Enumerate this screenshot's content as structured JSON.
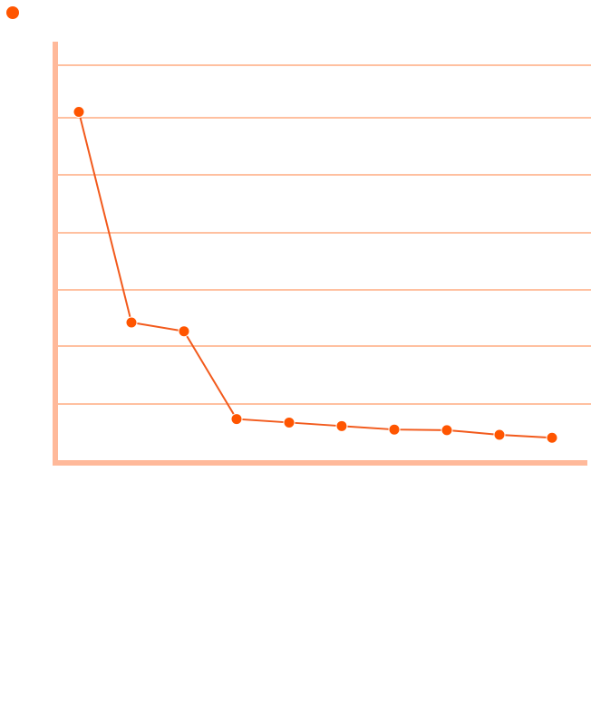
{
  "chart_data": {
    "type": "line",
    "title": "",
    "xlabel": "",
    "ylabel": "",
    "grid": true,
    "legend": "top-left",
    "colors": {
      "series": "#ff5500",
      "line": "#f25a1c",
      "grid": "#ffc0a0",
      "axis": "#ffb99a"
    },
    "ylim": [
      0,
      7.2
    ],
    "x": [
      1,
      2,
      3,
      4,
      5,
      6,
      7,
      8,
      9,
      10
    ],
    "series": [
      {
        "name": "",
        "values": [
          6.0,
          2.4,
          2.25,
          0.75,
          0.69,
          0.63,
          0.57,
          0.56,
          0.48,
          0.43
        ]
      }
    ]
  }
}
